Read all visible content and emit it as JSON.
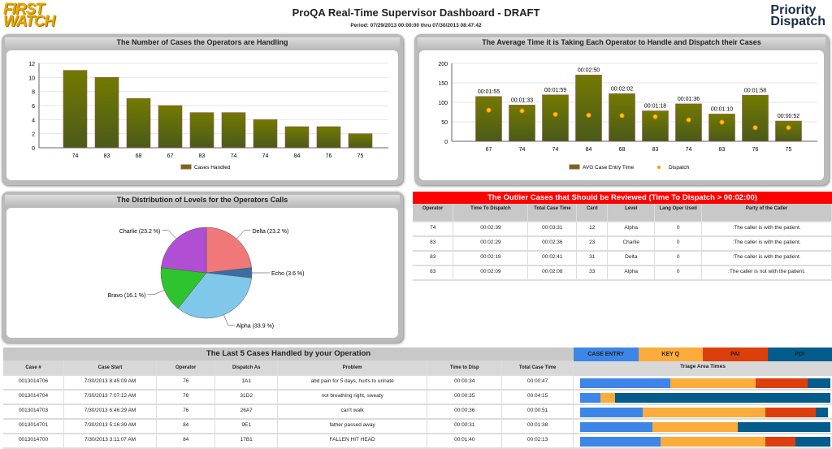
{
  "header": {
    "logo_left": "FIRST WATCH",
    "logo_right": "Priority Dispatch",
    "title": "ProQA Real-Time Supervisor Dashboard - DRAFT",
    "period": "Period: 07/29/2013 00:00:00 thru 07/30/2013 08:47:42"
  },
  "chart_data": [
    {
      "type": "bar",
      "title": "The Number of Cases the Operators are Handling",
      "categories": [
        "74",
        "83",
        "68",
        "67",
        "83",
        "74",
        "74",
        "84",
        "76",
        "75"
      ],
      "series": [
        {
          "name": "Cases Handled",
          "values": [
            11,
            10,
            7,
            6,
            5,
            5,
            4,
            3,
            3,
            2
          ],
          "color": "#6b7300"
        }
      ],
      "ylim": [
        0,
        12
      ],
      "yticks": [
        0,
        2,
        4,
        6,
        8,
        10,
        12
      ],
      "legend": "bottom"
    },
    {
      "type": "bar",
      "title": "The Average Time it is Taking Each Operator to Handle and Dispatch their Cases",
      "categories": [
        "67",
        "74",
        "74",
        "84",
        "68",
        "83",
        "74",
        "83",
        "76",
        "75"
      ],
      "series": [
        {
          "name": "AVG Case Entry Time",
          "values": [
            115,
            93,
            119,
            170,
            122,
            78,
            96,
            70,
            118,
            52
          ],
          "labels": [
            "00:01:55",
            "00:01:33",
            "00:01:59",
            "00:02:50",
            "00:02:02",
            "00:01:18",
            "00:01:36",
            "00:01:10",
            "00:01:58",
            "00:00:52"
          ],
          "color": "#6b7300"
        },
        {
          "name": "Dispatch",
          "type": "scatter",
          "values": [
            80,
            78,
            69,
            67,
            66,
            63,
            55,
            49,
            35,
            35
          ],
          "color": "#ff9900"
        }
      ],
      "ylim": [
        0,
        200
      ],
      "yticks": [
        0,
        50,
        100,
        150,
        200
      ],
      "legend": "bottom"
    },
    {
      "type": "pie",
      "title": "The Distribution of Levels for the Operators Calls",
      "slices": [
        {
          "label": "Delta (23.2 %)",
          "value": 23.2,
          "color": "#f07878"
        },
        {
          "label": "Echo (3.6 %)",
          "value": 3.6,
          "color": "#3a6ea5"
        },
        {
          "label": "Alpha (33.9 %)",
          "value": 33.9,
          "color": "#80c8ea"
        },
        {
          "label": "Bravo (16.1 %)",
          "value": 16.1,
          "color": "#2ec42e"
        },
        {
          "label": "Charlie (23.2 %)",
          "value": 23.2,
          "color": "#b04fd4"
        }
      ]
    }
  ],
  "outliers": {
    "title": "The Outlier Cases that Should be Reviewed (Time To Dispatch > 00:02:00)",
    "columns": [
      "Operator",
      "Time To Dispatch",
      "Total Case Time",
      "Card",
      "Level",
      "Lang Oper Used",
      "Party of the Caller"
    ],
    "rows": [
      [
        "74",
        "00:02:39",
        "00:03:31",
        "12",
        "Alpha",
        "0",
        ":The caller is with the patient."
      ],
      [
        "83",
        "00:02:29",
        "00:02:36",
        "23",
        "Charlie",
        "0",
        ":The caller is with the patient."
      ],
      [
        "83",
        "00:02:19",
        "00:02:41",
        "31",
        "Delta",
        "0",
        ":The caller is with the patient."
      ],
      [
        "83",
        "00:02:09",
        "00:02:08",
        "33",
        "Alpha",
        "0",
        ":The caller is not with the patient."
      ]
    ],
    "dispatch_seconds": [
      159,
      149,
      139,
      129
    ]
  },
  "last5": {
    "title": "The Last 5 Cases Handled by your Operation",
    "columns": [
      "Case #",
      "Case Start",
      "Operator",
      "Dispatch As",
      "Problem",
      "Time to Disp",
      "Total Case Time"
    ],
    "rows": [
      [
        "0013014706",
        "7/30/2013 8:45:09 AM",
        "76",
        "1A1",
        "abd pain for 5 days, hurts to urinate",
        "00:00:34",
        "00:00:47"
      ],
      [
        "0013014704",
        "7/30/2013 7:07:12 AM",
        "76",
        "31D2",
        "not breathing right, sweaty",
        "00:00:35",
        "00:04:15"
      ],
      [
        "0013014703",
        "7/30/2013 6:46:29 AM",
        "76",
        "26A7",
        "can't walk",
        "00:00:36",
        "00:00:51"
      ],
      [
        "0013014701",
        "7/30/2013 5:16:39 AM",
        "84",
        "9E1",
        "father passed away",
        "00:00:31",
        "00:01:38"
      ],
      [
        "0013014700",
        "7/30/2013 3:11:07 AM",
        "84",
        "17B1",
        "FALLEN HIT HEAD",
        "00:01:40",
        "00:02:13"
      ]
    ]
  },
  "triage": {
    "legend": [
      {
        "label": "CASE ENTRY",
        "color": "#3d86e8"
      },
      {
        "label": "KEY Q",
        "color": "#fbac3a"
      },
      {
        "label": "PAI",
        "color": "#dd3f0c"
      },
      {
        "label": "PDI",
        "color": "#045c8c"
      }
    ],
    "subtitle": "Triage Area Times",
    "rows": [
      [
        36,
        34,
        21,
        9
      ],
      [
        8,
        6,
        0,
        86
      ],
      [
        25,
        49,
        20,
        5
      ],
      [
        29,
        34,
        0,
        37
      ],
      [
        32,
        42,
        12,
        14
      ]
    ]
  }
}
